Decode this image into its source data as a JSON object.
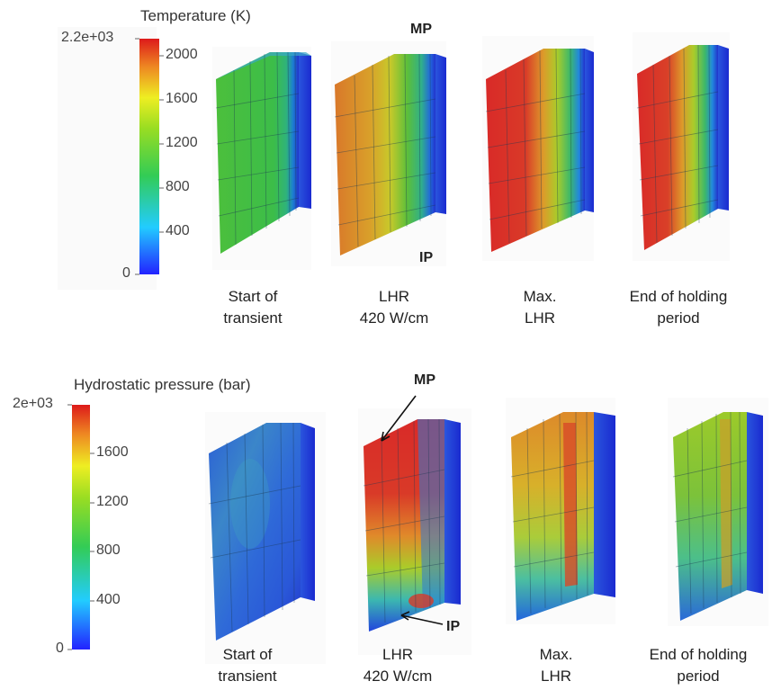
{
  "colors": {
    "blue": "#2233ff",
    "cyan": "#22ddee",
    "green": "#33bb33",
    "yellow": "#eeee22",
    "orange": "#ee8822",
    "red": "#dd1a1a"
  },
  "top_panel": {
    "title": "Temperature (K)",
    "max_label": "2.2e+03",
    "zero_label": "0",
    "ticks": [
      "2000",
      "1600",
      "1200",
      "800",
      "400"
    ],
    "annotations": {
      "mp": "MP",
      "ip": "IP"
    },
    "captions": [
      {
        "line1": "Start of",
        "line2": "transient"
      },
      {
        "line1": "LHR",
        "line2": "420 W/cm"
      },
      {
        "line1": "Max.",
        "line2": "LHR"
      },
      {
        "line1": "End of holding",
        "line2": "period"
      }
    ]
  },
  "bottom_panel": {
    "title": "Hydrostatic pressure (bar)",
    "max_label": "2e+03",
    "zero_label": "0",
    "ticks": [
      "1600",
      "1200",
      "800",
      "400"
    ],
    "annotations": {
      "mp": "MP",
      "ip": "IP"
    },
    "captions": [
      {
        "line1": "Start of",
        "line2": "transient"
      },
      {
        "line1": "LHR",
        "line2": "420 W/cm"
      },
      {
        "line1": "Max.",
        "line2": "LHR"
      },
      {
        "line1": "End of holding",
        "line2": "period"
      }
    ]
  }
}
